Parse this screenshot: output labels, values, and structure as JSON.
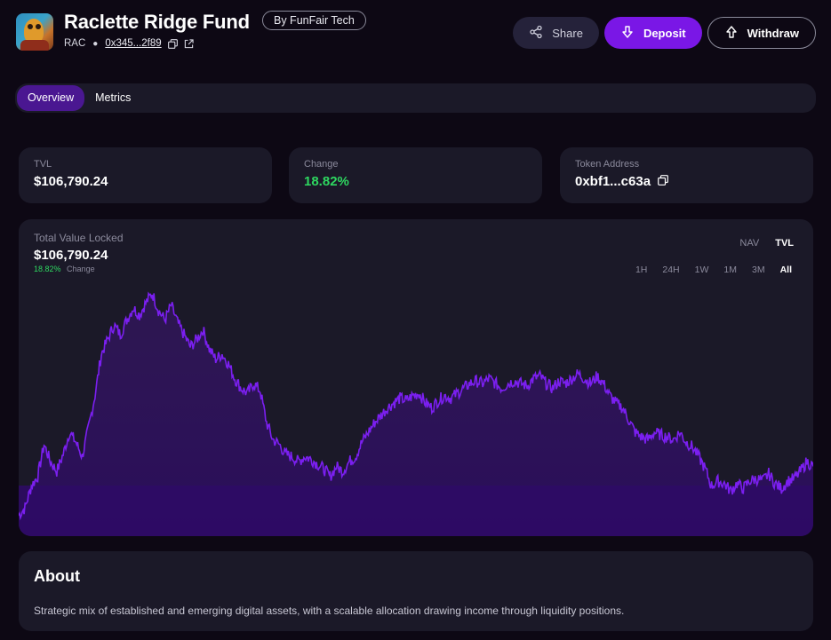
{
  "fund": {
    "name": "Raclette Ridge Fund",
    "by": "By FunFair Tech",
    "symbol": "RAC",
    "address": "0x345...2f89"
  },
  "actions": {
    "share": "Share",
    "deposit": "Deposit",
    "withdraw": "Withdraw"
  },
  "tabs": [
    {
      "label": "Overview",
      "active": true
    },
    {
      "label": "Metrics",
      "active": false
    }
  ],
  "stats": {
    "tvl": {
      "label": "TVL",
      "value": "$106,790.24"
    },
    "change": {
      "label": "Change",
      "value": "18.82%"
    },
    "token": {
      "label": "Token Address",
      "value": "0xbf1...c63a"
    }
  },
  "chart": {
    "label": "Total Value Locked",
    "value": "$106,790.24",
    "change_pct": "18.82%",
    "change_word": "Change",
    "metrics": [
      {
        "label": "NAV",
        "active": false
      },
      {
        "label": "TVL",
        "active": true
      }
    ],
    "ranges": [
      {
        "label": "1H",
        "active": false
      },
      {
        "label": "24H",
        "active": false
      },
      {
        "label": "1W",
        "active": false
      },
      {
        "label": "1M",
        "active": false
      },
      {
        "label": "3M",
        "active": false
      },
      {
        "label": "All",
        "active": true
      }
    ],
    "colors": {
      "line": "#7b1ff0",
      "fill_top": "#3b1670",
      "fill_bottom": "#2a0c5c"
    }
  },
  "about": {
    "title": "About",
    "text": "Strategic mix of established and emerging digital assets, with a scalable allocation drawing income through liquidity positions."
  },
  "chart_data": {
    "type": "area",
    "series": [
      {
        "values": [
          0.06,
          0.09,
          0.18,
          0.22,
          0.35,
          0.28,
          0.24,
          0.31,
          0.4,
          0.36,
          0.3,
          0.42,
          0.55,
          0.72,
          0.78,
          0.84,
          0.8,
          0.86,
          0.91,
          0.88,
          0.93,
          0.97,
          0.9,
          0.86,
          0.92,
          0.85,
          0.8,
          0.75,
          0.78,
          0.82,
          0.74,
          0.7,
          0.72,
          0.68,
          0.62,
          0.58,
          0.56,
          0.6,
          0.57,
          0.44,
          0.37,
          0.35,
          0.31,
          0.3,
          0.28,
          0.3,
          0.29,
          0.27,
          0.25,
          0.22,
          0.26,
          0.24,
          0.28,
          0.3,
          0.36,
          0.4,
          0.44,
          0.47,
          0.5,
          0.52,
          0.54,
          0.53,
          0.55,
          0.56,
          0.52,
          0.5,
          0.53,
          0.55,
          0.54,
          0.56,
          0.58,
          0.6,
          0.61,
          0.6,
          0.62,
          0.6,
          0.58,
          0.6,
          0.61,
          0.6,
          0.59,
          0.62,
          0.63,
          0.6,
          0.58,
          0.61,
          0.6,
          0.62,
          0.64,
          0.62,
          0.6,
          0.63,
          0.6,
          0.55,
          0.52,
          0.5,
          0.45,
          0.4,
          0.38,
          0.37,
          0.4,
          0.39,
          0.38,
          0.37,
          0.4,
          0.36,
          0.34,
          0.3,
          0.25,
          0.18,
          0.2,
          0.19,
          0.16,
          0.19,
          0.17,
          0.2,
          0.21,
          0.2,
          0.23,
          0.19,
          0.17,
          0.2,
          0.21,
          0.24,
          0.28,
          0.26
        ]
      }
    ],
    "ylim": [
      0,
      1
    ]
  }
}
